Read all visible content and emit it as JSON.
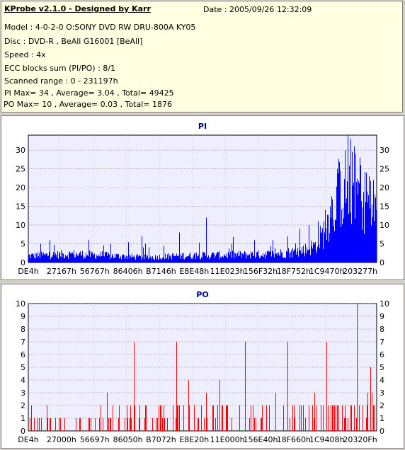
{
  "info": {
    "title": "KProbe v2.1.0 - Designed by Karr",
    "date": "Date : 2005/09/26 12:32:09",
    "lines": [
      "Model : 4-0-2-0 O:SONY    DVD RW DRU-800A  KY05",
      "Disc : DVD-R , BeAll G16001 [BeAll]",
      "Speed : 4x",
      "ECC blocks sum (PI/PO) : 8/1",
      "Scanned range : 0 - 231197h",
      "PI Max= 34 , Average= 3.04 , Total= 49425",
      "PO Max= 10 , Average= 0.03 , Total= 1876"
    ]
  },
  "colors": {
    "pi_fill": "#0000ff",
    "po_fill": "#ff0000",
    "plot_bg": "#eeeeff",
    "title": "#000080"
  },
  "chart_data": [
    {
      "type": "bar",
      "title": "PI",
      "ylim": [
        0,
        34
      ],
      "yticks": [
        0,
        5,
        10,
        15,
        20,
        25,
        30
      ],
      "xticks": [
        "DE4h",
        "27167h",
        "56767h",
        "86406h",
        "B7146h",
        "E8E48h",
        "11E023h",
        "156F32h",
        "18F752h",
        "1C9470h",
        "203277h"
      ],
      "xlim": [
        0,
        231197
      ],
      "spikes": [
        [
          8000,
          5
        ],
        [
          14000,
          6
        ],
        [
          40000,
          6
        ],
        [
          75000,
          7
        ],
        [
          100000,
          8
        ],
        [
          118000,
          12
        ],
        [
          135000,
          5
        ],
        [
          150000,
          6
        ],
        [
          162000,
          6
        ],
        [
          172000,
          7
        ],
        [
          180000,
          9
        ],
        [
          186000,
          10
        ],
        [
          192000,
          11
        ],
        [
          197000,
          14
        ],
        [
          200000,
          15
        ],
        [
          205000,
          25
        ],
        [
          210000,
          30
        ],
        [
          212000,
          34
        ],
        [
          214000,
          33
        ],
        [
          216000,
          31
        ],
        [
          220000,
          28
        ],
        [
          224000,
          24
        ],
        [
          226000,
          23
        ],
        [
          229000,
          22
        ]
      ],
      "baseline": [
        [
          0,
          2
        ],
        [
          30000,
          2.5
        ],
        [
          80000,
          1.5
        ],
        [
          100000,
          2
        ],
        [
          130000,
          2.2
        ],
        [
          160000,
          2.5
        ],
        [
          175000,
          3
        ],
        [
          185000,
          4
        ],
        [
          190000,
          5
        ],
        [
          195000,
          8
        ],
        [
          200000,
          14
        ],
        [
          205000,
          20
        ],
        [
          210000,
          22
        ],
        [
          215000,
          22
        ],
        [
          220000,
          20
        ],
        [
          226000,
          17
        ],
        [
          231197,
          14
        ]
      ]
    },
    {
      "type": "bar",
      "title": "PO",
      "ylim": [
        0,
        10
      ],
      "yticks": [
        0,
        1,
        2,
        3,
        4,
        5,
        6,
        7,
        8,
        9,
        10
      ],
      "xticks": [
        "DE4h",
        "27000h",
        "56697h",
        "86050h",
        "B7072h",
        "E8E20h",
        "11E000h",
        "156E40h",
        "18F660h",
        "1C9408h",
        "20320Fh"
      ],
      "xlim": [
        0,
        231197
      ],
      "spikes": [
        [
          2000,
          2
        ],
        [
          7000,
          1
        ],
        [
          12000,
          2
        ],
        [
          24000,
          1
        ],
        [
          44000,
          1
        ],
        [
          48000,
          2
        ],
        [
          52000,
          3
        ],
        [
          56000,
          2
        ],
        [
          60000,
          2
        ],
        [
          64000,
          1
        ],
        [
          66000,
          1
        ],
        [
          70000,
          7
        ],
        [
          74000,
          2
        ],
        [
          78000,
          2
        ],
        [
          82000,
          1
        ],
        [
          88000,
          2
        ],
        [
          92000,
          1
        ],
        [
          96000,
          2
        ],
        [
          98000,
          7
        ],
        [
          103000,
          2
        ],
        [
          106000,
          4
        ],
        [
          110000,
          2
        ],
        [
          113000,
          1
        ],
        [
          118000,
          3
        ],
        [
          122000,
          2
        ],
        [
          127000,
          4
        ],
        [
          131000,
          2
        ],
        [
          135000,
          1
        ],
        [
          140000,
          2
        ],
        [
          144000,
          7
        ],
        [
          150000,
          1
        ],
        [
          155000,
          2
        ],
        [
          160000,
          2
        ],
        [
          164000,
          3
        ],
        [
          169000,
          2
        ],
        [
          172000,
          7
        ],
        [
          176000,
          2
        ],
        [
          180000,
          2
        ],
        [
          186000,
          2
        ],
        [
          190000,
          3
        ],
        [
          194000,
          2
        ],
        [
          198000,
          7
        ],
        [
          202000,
          2
        ],
        [
          206000,
          2
        ],
        [
          210000,
          2
        ],
        [
          214000,
          2
        ],
        [
          216000,
          2
        ],
        [
          218000,
          10
        ],
        [
          222000,
          2
        ],
        [
          225000,
          3
        ],
        [
          227000,
          5
        ],
        [
          228000,
          3
        ],
        [
          229000,
          2
        ]
      ],
      "baseline": [
        [
          0,
          0.3
        ],
        [
          100000,
          0.4
        ],
        [
          150000,
          0.6
        ],
        [
          200000,
          0.8
        ],
        [
          231197,
          0.6
        ]
      ]
    }
  ]
}
